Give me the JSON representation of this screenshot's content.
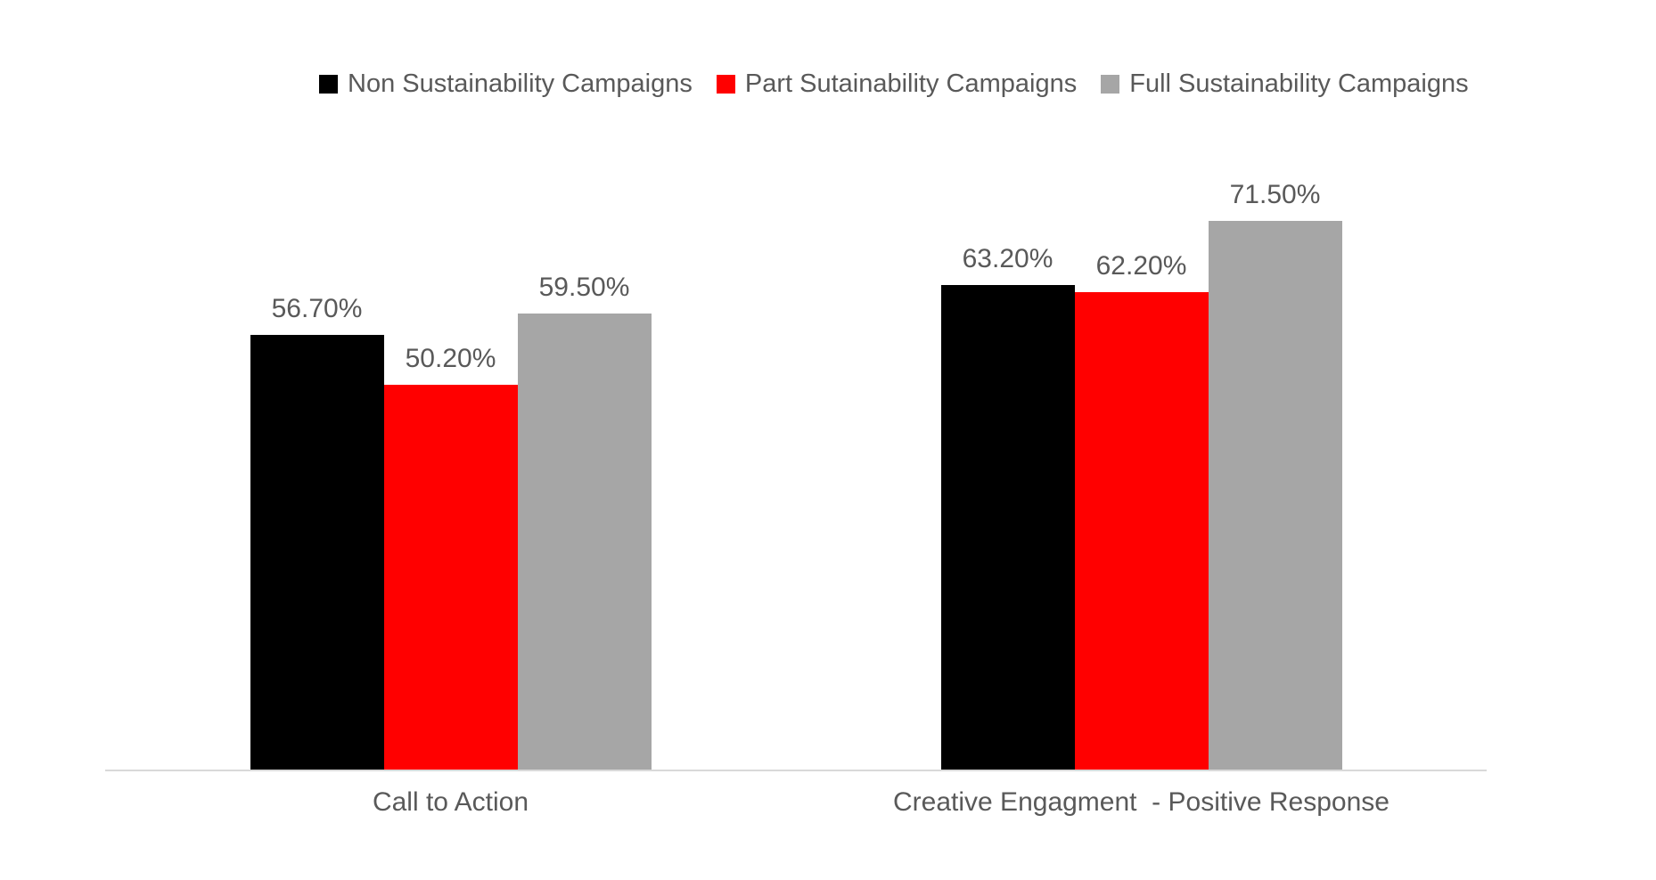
{
  "legend": {
    "position": "top",
    "items": [
      {
        "label": "Non Sustainability Campaigns",
        "color": "#000000"
      },
      {
        "label": "Part Sutainability Campaigns",
        "color": "#ff0000"
      },
      {
        "label": "Full Sustainability Campaigns",
        "color": "#a6a6a6"
      }
    ]
  },
  "chart_data": {
    "type": "bar",
    "title": "",
    "xlabel": "",
    "ylabel": "",
    "value_unit": "%",
    "categories": [
      "Call to Action",
      "Creative Engagment  - Positive Response"
    ],
    "series": [
      {
        "name": "Non Sustainability Campaigns",
        "color": "#000000",
        "values": [
          56.7,
          63.2
        ],
        "labels": [
          "56.70%",
          "63.20%"
        ]
      },
      {
        "name": "Part Sutainability Campaigns",
        "color": "#ff0000",
        "values": [
          50.2,
          62.2
        ],
        "labels": [
          "50.20%",
          "62.20%"
        ]
      },
      {
        "name": "Full Sustainability Campaigns",
        "color": "#a6a6a6",
        "values": [
          59.5,
          71.5
        ],
        "labels": [
          "59.50%",
          "71.50%"
        ]
      }
    ],
    "y_axis": {
      "visible": false,
      "min": 0
    },
    "x_axis_line_color": "#d9d9d9",
    "grid": false,
    "data_label_color": "#595959",
    "legend_position": "top",
    "background": "#ffffff"
  }
}
